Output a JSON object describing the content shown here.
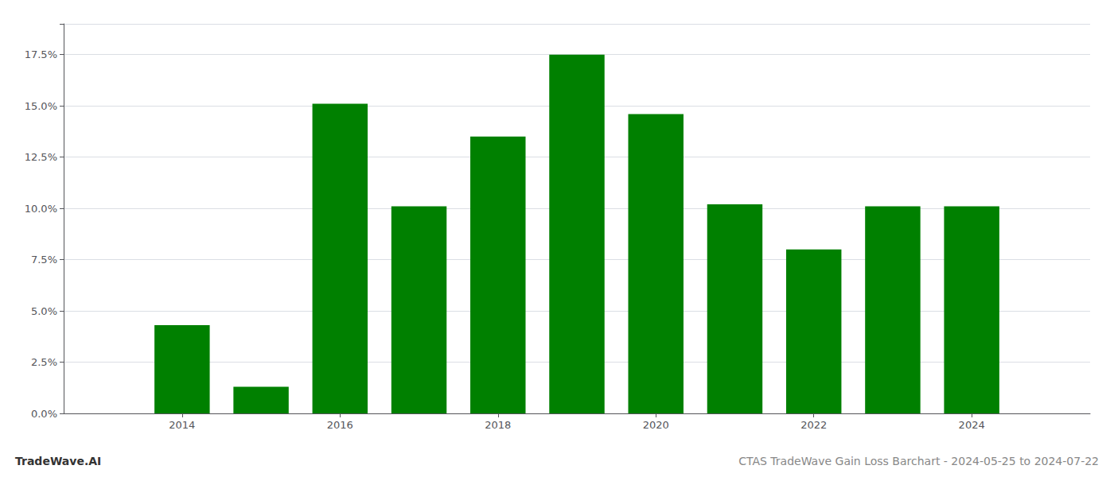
{
  "chart_data": {
    "type": "bar",
    "x": [
      2014,
      2015,
      2016,
      2017,
      2018,
      2019,
      2020,
      2021,
      2022,
      2023,
      2024
    ],
    "values": [
      0.043,
      0.013,
      0.151,
      0.101,
      0.135,
      0.175,
      0.146,
      0.102,
      0.08,
      0.101,
      0.101
    ],
    "color": "#008000",
    "xlim": [
      2012.5,
      2025.5
    ],
    "xticks": [
      2014,
      2016,
      2018,
      2020,
      2022,
      2024
    ],
    "ylim": [
      0,
      0.19
    ],
    "yticks": [
      {
        "value": 0.0,
        "label": "0.0%"
      },
      {
        "value": 0.025,
        "label": "2.5%"
      },
      {
        "value": 0.05,
        "label": "5.0%"
      },
      {
        "value": 0.075,
        "label": "7.5%"
      },
      {
        "value": 0.1,
        "label": "10.0%"
      },
      {
        "value": 0.125,
        "label": "12.5%"
      },
      {
        "value": 0.15,
        "label": "15.0%"
      },
      {
        "value": 0.175,
        "label": "17.5%"
      }
    ],
    "grid": true,
    "annotations": [
      "TradeWave.AI",
      "CTAS TradeWave Gain Loss Barchart - 2024-05-25 to 2024-07-22"
    ]
  }
}
